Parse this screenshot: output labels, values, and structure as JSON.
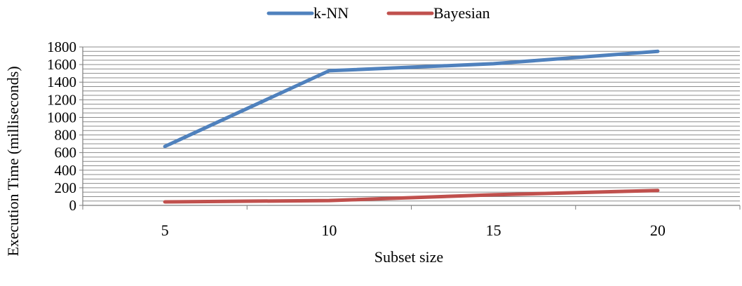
{
  "chart_data": {
    "type": "line",
    "title": "",
    "xlabel": "Subset size",
    "ylabel": "Execution Time (milliseconds)",
    "categories": [
      "5",
      "10",
      "15",
      "20"
    ],
    "ylim": [
      0,
      1800
    ],
    "yticks": [
      0,
      200,
      400,
      600,
      800,
      1000,
      1200,
      1400,
      1600,
      1800
    ],
    "minor_grid_step": 50,
    "grid": true,
    "legend_position": "top-center",
    "series": [
      {
        "name": "k-NN",
        "color": "#4F81BD",
        "values": [
          670,
          1530,
          1610,
          1750
        ]
      },
      {
        "name": "Bayesian",
        "color": "#C0504D",
        "values": [
          40,
          55,
          120,
          170
        ]
      }
    ]
  }
}
